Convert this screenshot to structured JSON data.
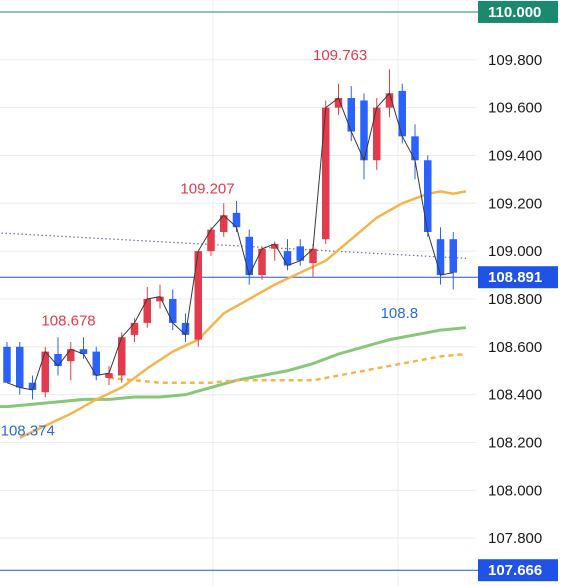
{
  "chart_data": {
    "type": "candlestick",
    "ylim": [
      107.6,
      110.05
    ],
    "y_ticks": [
      "110.000",
      "109.800",
      "109.600",
      "109.400",
      "109.200",
      "109.000",
      "108.800",
      "108.600",
      "108.400",
      "108.200",
      "108.000",
      "107.800"
    ],
    "grid": true,
    "price_labels": [
      {
        "text": "110.000",
        "value": 110.0,
        "color": "#1a8a6e",
        "line": true
      },
      {
        "text": "108.891",
        "value": 108.891,
        "color": "#1e53e5",
        "line": true
      },
      {
        "text": "107.666",
        "value": 107.666,
        "color": "#1e53e5",
        "line": true
      }
    ],
    "annotations": [
      {
        "text": "109.763",
        "x": 24,
        "y": 109.8,
        "color": "#e33b4b"
      },
      {
        "text": "109.207",
        "x": 13.6,
        "y": 109.24,
        "color": "#e33b4b"
      },
      {
        "text": "108.678",
        "x": 2.7,
        "y": 108.69,
        "color": "#e33b4b"
      },
      {
        "text": "108.8",
        "x": 29.3,
        "y": 108.72,
        "color": "#2e6bd6"
      },
      {
        "text": "108.374",
        "x": -0.5,
        "y": 108.23,
        "color": "#2e6bd6"
      }
    ],
    "candles": [
      {
        "o": 108.6,
        "h": 108.62,
        "l": 108.45,
        "c": 108.45
      },
      {
        "o": 108.6,
        "h": 108.62,
        "l": 108.4,
        "c": 108.43
      },
      {
        "o": 108.45,
        "h": 108.48,
        "l": 108.38,
        "c": 108.42
      },
      {
        "o": 108.41,
        "h": 108.6,
        "l": 108.39,
        "c": 108.58
      },
      {
        "o": 108.57,
        "h": 108.64,
        "l": 108.48,
        "c": 108.52
      },
      {
        "o": 108.54,
        "h": 108.62,
        "l": 108.46,
        "c": 108.59
      },
      {
        "o": 108.59,
        "h": 108.64,
        "l": 108.55,
        "c": 108.57
      },
      {
        "o": 108.58,
        "h": 108.6,
        "l": 108.46,
        "c": 108.48
      },
      {
        "o": 108.47,
        "h": 108.52,
        "l": 108.44,
        "c": 108.49
      },
      {
        "o": 108.48,
        "h": 108.66,
        "l": 108.45,
        "c": 108.64
      },
      {
        "o": 108.65,
        "h": 108.72,
        "l": 108.62,
        "c": 108.7
      },
      {
        "o": 108.7,
        "h": 108.85,
        "l": 108.68,
        "c": 108.8
      },
      {
        "o": 108.79,
        "h": 108.86,
        "l": 108.76,
        "c": 108.81
      },
      {
        "o": 108.8,
        "h": 108.84,
        "l": 108.67,
        "c": 108.7
      },
      {
        "o": 108.7,
        "h": 108.74,
        "l": 108.62,
        "c": 108.65
      },
      {
        "o": 108.63,
        "h": 109.0,
        "l": 108.6,
        "c": 109.0
      },
      {
        "o": 109.0,
        "h": 109.1,
        "l": 108.98,
        "c": 109.09
      },
      {
        "o": 109.08,
        "h": 109.2,
        "l": 109.06,
        "c": 109.15
      },
      {
        "o": 109.16,
        "h": 109.21,
        "l": 109.08,
        "c": 109.1
      },
      {
        "o": 109.06,
        "h": 109.09,
        "l": 108.86,
        "c": 108.9
      },
      {
        "o": 108.9,
        "h": 109.02,
        "l": 108.88,
        "c": 109.01
      },
      {
        "o": 109.01,
        "h": 109.04,
        "l": 108.96,
        "c": 109.03
      },
      {
        "o": 109.0,
        "h": 109.05,
        "l": 108.92,
        "c": 108.94
      },
      {
        "o": 109.02,
        "h": 109.05,
        "l": 108.94,
        "c": 108.96
      },
      {
        "o": 108.95,
        "h": 109.03,
        "l": 108.89,
        "c": 109.01
      },
      {
        "o": 109.05,
        "h": 109.63,
        "l": 109.03,
        "c": 109.6
      },
      {
        "o": 109.6,
        "h": 109.7,
        "l": 109.57,
        "c": 109.64
      },
      {
        "o": 109.64,
        "h": 109.69,
        "l": 109.46,
        "c": 109.5
      },
      {
        "o": 109.63,
        "h": 109.66,
        "l": 109.3,
        "c": 109.38
      },
      {
        "o": 109.38,
        "h": 109.64,
        "l": 109.34,
        "c": 109.6
      },
      {
        "o": 109.6,
        "h": 109.76,
        "l": 109.56,
        "c": 109.66
      },
      {
        "o": 109.67,
        "h": 109.7,
        "l": 109.45,
        "c": 109.48
      },
      {
        "o": 109.48,
        "h": 109.53,
        "l": 109.3,
        "c": 109.38
      },
      {
        "o": 109.38,
        "h": 109.4,
        "l": 109.06,
        "c": 109.08
      },
      {
        "o": 109.05,
        "h": 109.1,
        "l": 108.86,
        "c": 108.9
      },
      {
        "o": 109.05,
        "h": 109.08,
        "l": 108.84,
        "c": 108.91
      }
    ],
    "line_close": [
      108.45,
      108.43,
      108.42,
      108.58,
      108.52,
      108.59,
      108.57,
      108.48,
      108.49,
      108.64,
      108.7,
      108.8,
      108.81,
      108.7,
      108.65,
      109.0,
      109.09,
      109.15,
      109.1,
      108.9,
      109.01,
      109.03,
      108.94,
      108.96,
      109.01,
      109.6,
      109.64,
      109.5,
      109.38,
      109.6,
      109.66,
      109.48,
      109.38,
      109.08,
      108.9,
      108.91
    ],
    "dotted_ma": {
      "x": [
        -2,
        36
      ],
      "y": [
        109.08,
        108.97
      ],
      "color": "#6c6ca8"
    },
    "ma_orange": {
      "x": [
        1,
        3,
        5,
        7,
        9,
        11,
        13,
        15,
        17,
        19,
        21,
        23,
        25,
        27,
        29,
        31,
        33,
        34,
        35,
        36
      ],
      "y": [
        108.22,
        108.27,
        108.32,
        108.38,
        108.43,
        108.51,
        108.58,
        108.63,
        108.74,
        108.8,
        108.86,
        108.91,
        108.96,
        109.05,
        109.14,
        109.2,
        109.24,
        109.25,
        109.24,
        109.25
      ],
      "color": "#f6b44c"
    },
    "ma_dashed": {
      "x": [
        8,
        10,
        12,
        14,
        16,
        18,
        20,
        22,
        24,
        26,
        28,
        30,
        32,
        34,
        36
      ],
      "y": [
        108.47,
        108.46,
        108.45,
        108.45,
        108.45,
        108.46,
        108.46,
        108.46,
        108.46,
        108.48,
        108.5,
        108.52,
        108.54,
        108.56,
        108.57
      ],
      "color": "#f6b44c"
    },
    "ma_green": {
      "x": [
        -2,
        0,
        2,
        4,
        6,
        8,
        10,
        12,
        14,
        16,
        18,
        20,
        22,
        24,
        26,
        28,
        30,
        32,
        34,
        36
      ],
      "y": [
        108.35,
        108.35,
        108.36,
        108.37,
        108.38,
        108.38,
        108.39,
        108.39,
        108.4,
        108.43,
        108.46,
        108.48,
        108.5,
        108.53,
        108.57,
        108.6,
        108.63,
        108.65,
        108.67,
        108.68
      ],
      "color": "#86c878"
    },
    "colors": {
      "up": "#e33b4b",
      "down": "#2962ff",
      "grid": "#ececec"
    }
  }
}
